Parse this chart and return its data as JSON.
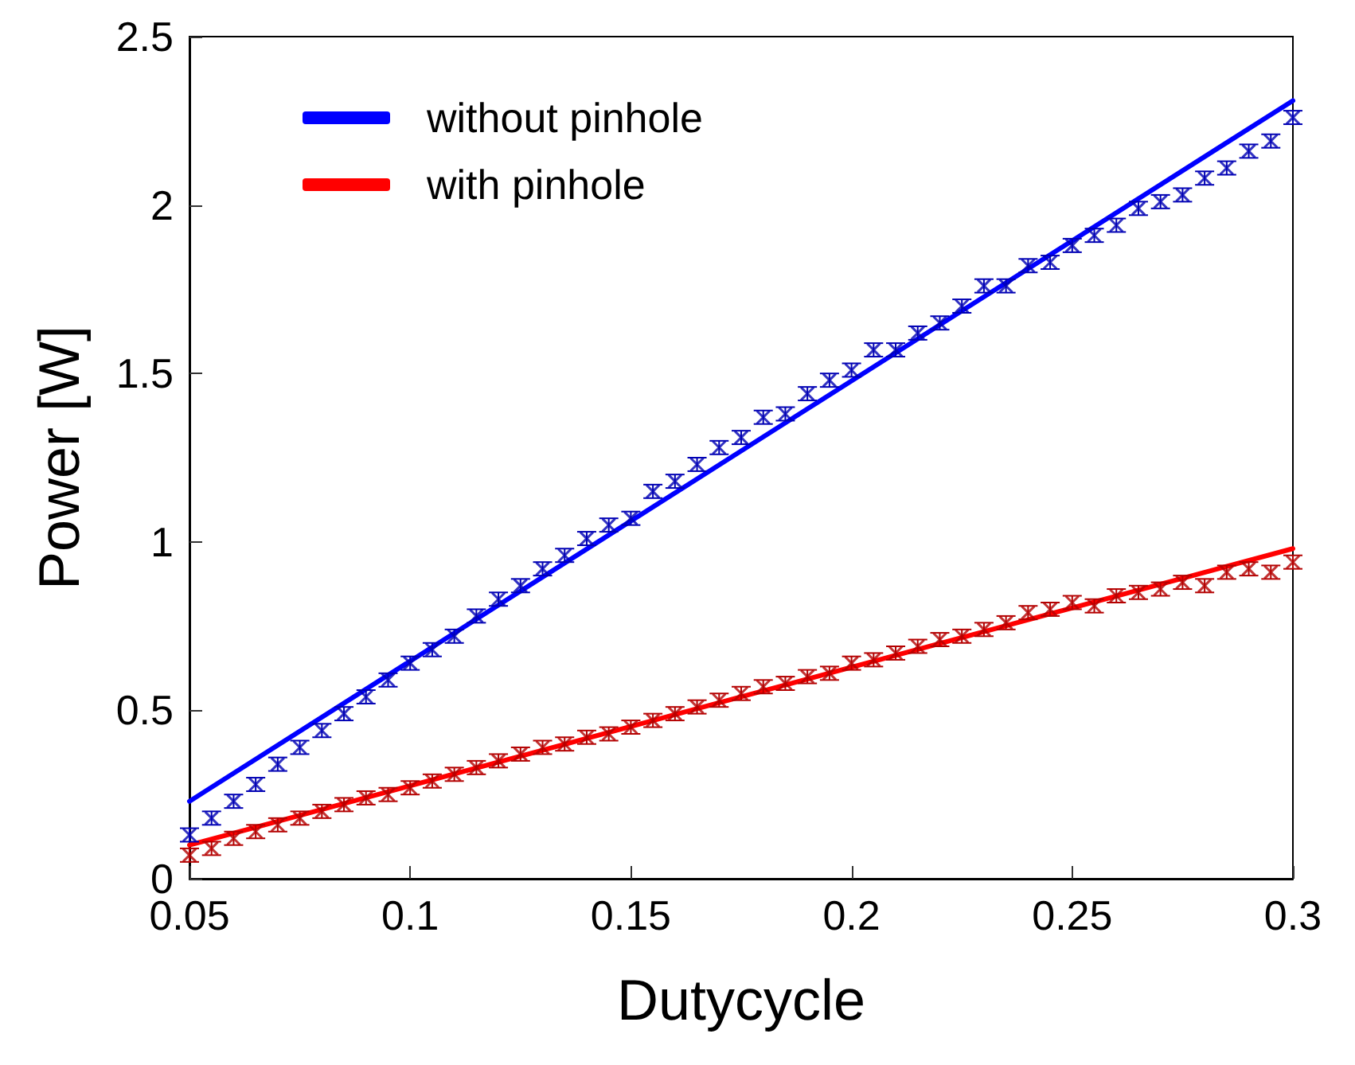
{
  "chart_data": {
    "type": "scatter",
    "xlabel": "Dutycycle",
    "ylabel": "Power [W]",
    "xlim": [
      0.05,
      0.3
    ],
    "xticks": [
      0.05,
      0.1,
      0.15,
      0.2,
      0.25,
      0.3
    ],
    "ylim": [
      0,
      2.5
    ],
    "yticks": [
      0,
      0.5,
      1,
      1.5,
      2,
      2.5
    ],
    "grid": false,
    "legend": "top left",
    "x": [
      0.05,
      0.055,
      0.06,
      0.065,
      0.07,
      0.075,
      0.08,
      0.085,
      0.09,
      0.095,
      0.1,
      0.105,
      0.11,
      0.115,
      0.12,
      0.125,
      0.13,
      0.135,
      0.14,
      0.145,
      0.15,
      0.155,
      0.16,
      0.165,
      0.17,
      0.175,
      0.18,
      0.185,
      0.19,
      0.195,
      0.2,
      0.205,
      0.21,
      0.215,
      0.22,
      0.225,
      0.23,
      0.235,
      0.24,
      0.245,
      0.25,
      0.255,
      0.26,
      0.265,
      0.27,
      0.275,
      0.28,
      0.285,
      0.29,
      0.295,
      0.3
    ],
    "series": [
      {
        "type": "scatter",
        "color": "#0000b4",
        "marker": "cross",
        "values": [
          0.13,
          0.18,
          0.23,
          0.28,
          0.34,
          0.39,
          0.44,
          0.49,
          0.54,
          0.59,
          0.64,
          0.68,
          0.72,
          0.78,
          0.83,
          0.87,
          0.92,
          0.96,
          1.01,
          1.05,
          1.07,
          1.15,
          1.18,
          1.23,
          1.28,
          1.31,
          1.37,
          1.38,
          1.44,
          1.48,
          1.51,
          1.57,
          1.57,
          1.62,
          1.65,
          1.7,
          1.76,
          1.76,
          1.82,
          1.83,
          1.88,
          1.91,
          1.94,
          1.99,
          2.01,
          2.03,
          2.08,
          2.11,
          2.16,
          2.19,
          2.26
        ],
        "errors": [
          0.02,
          0.02,
          0.02,
          0.02,
          0.02,
          0.02,
          0.02,
          0.02,
          0.02,
          0.02,
          0.02,
          0.02,
          0.02,
          0.02,
          0.02,
          0.02,
          0.02,
          0.02,
          0.02,
          0.02,
          0.02,
          0.02,
          0.02,
          0.02,
          0.02,
          0.02,
          0.02,
          0.02,
          0.02,
          0.02,
          0.02,
          0.02,
          0.02,
          0.02,
          0.02,
          0.02,
          0.02,
          0.02,
          0.02,
          0.02,
          0.02,
          0.02,
          0.02,
          0.02,
          0.02,
          0.02,
          0.02,
          0.02,
          0.02,
          0.02,
          0.02
        ]
      },
      {
        "type": "scatter",
        "color": "#b40000",
        "marker": "cross",
        "values": [
          0.07,
          0.09,
          0.12,
          0.14,
          0.16,
          0.18,
          0.2,
          0.22,
          0.24,
          0.25,
          0.27,
          0.29,
          0.31,
          0.33,
          0.35,
          0.37,
          0.39,
          0.4,
          0.42,
          0.43,
          0.45,
          0.47,
          0.49,
          0.51,
          0.53,
          0.55,
          0.57,
          0.58,
          0.6,
          0.61,
          0.64,
          0.65,
          0.67,
          0.69,
          0.71,
          0.72,
          0.74,
          0.76,
          0.79,
          0.8,
          0.82,
          0.81,
          0.84,
          0.85,
          0.86,
          0.88,
          0.87,
          0.91,
          0.92,
          0.91,
          0.94
        ],
        "errors": [
          0.02,
          0.02,
          0.02,
          0.02,
          0.02,
          0.02,
          0.02,
          0.02,
          0.02,
          0.02,
          0.02,
          0.02,
          0.02,
          0.02,
          0.02,
          0.02,
          0.02,
          0.02,
          0.02,
          0.02,
          0.02,
          0.02,
          0.02,
          0.02,
          0.02,
          0.02,
          0.02,
          0.02,
          0.02,
          0.02,
          0.02,
          0.02,
          0.02,
          0.02,
          0.02,
          0.02,
          0.02,
          0.02,
          0.02,
          0.02,
          0.02,
          0.02,
          0.02,
          0.02,
          0.02,
          0.02,
          0.02,
          0.02,
          0.02,
          0.02,
          0.02
        ]
      },
      {
        "type": "line",
        "name": "without pinhole",
        "color": "#0000ff",
        "line_style": "solid",
        "x": [
          0.05,
          0.175,
          0.3
        ],
        "values": [
          0.23,
          1.27,
          2.31
        ]
      },
      {
        "type": "line",
        "name": "with pinhole",
        "color": "#ff0000",
        "line_style": "solid",
        "x": [
          0.05,
          0.175,
          0.3
        ],
        "values": [
          0.1,
          0.54,
          0.98
        ]
      }
    ]
  }
}
